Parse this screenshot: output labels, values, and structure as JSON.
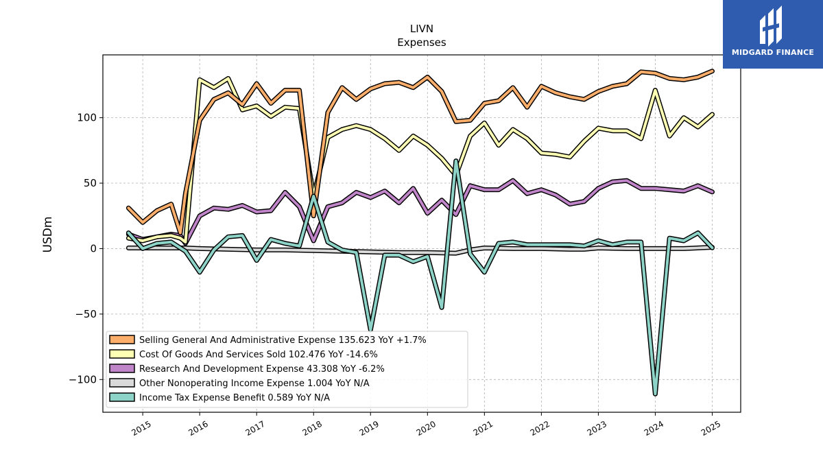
{
  "logo": {
    "text": "MIDGARD FINANCE",
    "icon": "midgard-finance-logo-icon",
    "color": "#2f5cae"
  },
  "chart_data": {
    "type": "line",
    "title": "LIVN",
    "subtitle": "Expenses",
    "ylabel": "USDm",
    "xlabel": "",
    "ylim": [
      -125,
      148
    ],
    "xlim": [
      2014.3,
      2025.5
    ],
    "yticks": [
      -100,
      -50,
      0,
      50,
      100
    ],
    "ytick_labels": [
      "−100",
      "−50",
      "0",
      "50",
      "100"
    ],
    "xticks": [
      2015,
      2016,
      2017,
      2018,
      2019,
      2020,
      2021,
      2022,
      2023,
      2024,
      2025
    ],
    "xtick_labels": [
      "2015",
      "2016",
      "2017",
      "2018",
      "2019",
      "2020",
      "2021",
      "2022",
      "2023",
      "2024",
      "2025"
    ],
    "grid": true,
    "legend_position": "bottom-left",
    "series": [
      {
        "name": "Selling General And Administrative Expense",
        "legend": "Selling General And Administrative Expense  135.623 YoY +1.7%",
        "color": "#fdae6b",
        "points": [
          [
            2014.75,
            31
          ],
          [
            2015.0,
            20
          ],
          [
            2015.25,
            29
          ],
          [
            2015.5,
            34
          ],
          [
            2015.66,
            12
          ],
          [
            2015.75,
            42
          ],
          [
            2016.0,
            98
          ],
          [
            2016.25,
            114
          ],
          [
            2016.5,
            119
          ],
          [
            2016.75,
            110
          ],
          [
            2017.0,
            126
          ],
          [
            2017.25,
            111
          ],
          [
            2017.5,
            121
          ],
          [
            2017.75,
            121
          ],
          [
            2018.0,
            25
          ],
          [
            2018.25,
            104
          ],
          [
            2018.5,
            123
          ],
          [
            2018.75,
            114
          ],
          [
            2019.0,
            122
          ],
          [
            2019.25,
            126
          ],
          [
            2019.5,
            127
          ],
          [
            2019.75,
            123
          ],
          [
            2020.0,
            131
          ],
          [
            2020.25,
            120
          ],
          [
            2020.5,
            97
          ],
          [
            2020.75,
            98
          ],
          [
            2021.0,
            111
          ],
          [
            2021.25,
            113
          ],
          [
            2021.5,
            123
          ],
          [
            2021.75,
            108
          ],
          [
            2022.0,
            124
          ],
          [
            2022.25,
            119
          ],
          [
            2022.5,
            116
          ],
          [
            2022.75,
            114
          ],
          [
            2023.0,
            120
          ],
          [
            2023.25,
            124
          ],
          [
            2023.5,
            126
          ],
          [
            2023.75,
            135
          ],
          [
            2024.0,
            134
          ],
          [
            2024.25,
            130
          ],
          [
            2024.5,
            129
          ],
          [
            2024.75,
            131
          ],
          [
            2025.0,
            135.6
          ]
        ]
      },
      {
        "name": "Cost Of Goods And Services Sold",
        "legend": "Cost Of Goods And Services Sold  102.476 YoY -14.6%",
        "color": "#ffffb3",
        "points": [
          [
            2014.75,
            8
          ],
          [
            2015.0,
            6
          ],
          [
            2015.25,
            9
          ],
          [
            2015.5,
            10
          ],
          [
            2015.66,
            8
          ],
          [
            2015.75,
            5
          ],
          [
            2016.0,
            129
          ],
          [
            2016.25,
            123
          ],
          [
            2016.5,
            130
          ],
          [
            2016.75,
            106
          ],
          [
            2017.0,
            109
          ],
          [
            2017.25,
            101
          ],
          [
            2017.5,
            108
          ],
          [
            2017.75,
            107
          ],
          [
            2018.0,
            40
          ],
          [
            2018.25,
            85
          ],
          [
            2018.5,
            91
          ],
          [
            2018.75,
            94
          ],
          [
            2019.0,
            91
          ],
          [
            2019.25,
            84
          ],
          [
            2019.5,
            75
          ],
          [
            2019.75,
            86
          ],
          [
            2020.0,
            79
          ],
          [
            2020.25,
            69
          ],
          [
            2020.5,
            56
          ],
          [
            2020.75,
            86
          ],
          [
            2021.0,
            96
          ],
          [
            2021.25,
            79
          ],
          [
            2021.5,
            91
          ],
          [
            2021.75,
            84
          ],
          [
            2022.0,
            73
          ],
          [
            2022.25,
            72
          ],
          [
            2022.5,
            70
          ],
          [
            2022.75,
            82
          ],
          [
            2023.0,
            92
          ],
          [
            2023.25,
            90
          ],
          [
            2023.5,
            90
          ],
          [
            2023.75,
            84
          ],
          [
            2024.0,
            121
          ],
          [
            2024.25,
            86
          ],
          [
            2024.5,
            100
          ],
          [
            2024.75,
            93
          ],
          [
            2025.0,
            102.5
          ]
        ]
      },
      {
        "name": "Research And Development Expense",
        "legend": "Research And Development Expense  43.308 YoY -6.2%",
        "color": "#c084c8",
        "points": [
          [
            2014.75,
            11
          ],
          [
            2015.0,
            7
          ],
          [
            2015.25,
            9
          ],
          [
            2015.5,
            11
          ],
          [
            2015.66,
            10
          ],
          [
            2015.75,
            4
          ],
          [
            2016.0,
            25
          ],
          [
            2016.25,
            31
          ],
          [
            2016.5,
            30
          ],
          [
            2016.75,
            33
          ],
          [
            2017.0,
            28
          ],
          [
            2017.25,
            29
          ],
          [
            2017.5,
            43
          ],
          [
            2017.75,
            32
          ],
          [
            2018.0,
            6
          ],
          [
            2018.25,
            32
          ],
          [
            2018.5,
            35
          ],
          [
            2018.75,
            43
          ],
          [
            2019.0,
            39
          ],
          [
            2019.25,
            44
          ],
          [
            2019.5,
            35
          ],
          [
            2019.75,
            46
          ],
          [
            2020.0,
            27
          ],
          [
            2020.25,
            37
          ],
          [
            2020.5,
            26
          ],
          [
            2020.75,
            48
          ],
          [
            2021.0,
            45
          ],
          [
            2021.25,
            45
          ],
          [
            2021.5,
            52
          ],
          [
            2021.75,
            42
          ],
          [
            2022.0,
            45
          ],
          [
            2022.25,
            41
          ],
          [
            2022.5,
            34
          ],
          [
            2022.75,
            36
          ],
          [
            2023.0,
            46
          ],
          [
            2023.25,
            51
          ],
          [
            2023.5,
            52
          ],
          [
            2023.75,
            46
          ],
          [
            2024.0,
            46
          ],
          [
            2024.25,
            45
          ],
          [
            2024.5,
            44
          ],
          [
            2024.75,
            48
          ],
          [
            2025.0,
            43.3
          ]
        ]
      },
      {
        "name": "Other Nonoperating Income Expense",
        "legend": "Other Nonoperating Income Expense  1.004 YoY N/A",
        "color": "#d9d9d9",
        "points": [
          [
            2014.75,
            0.5
          ],
          [
            2015.0,
            0.5
          ],
          [
            2015.25,
            0.5
          ],
          [
            2015.5,
            0.5
          ],
          [
            2015.75,
            0.5
          ],
          [
            2016.0,
            0
          ],
          [
            2016.5,
            -0.5
          ],
          [
            2017.0,
            -1
          ],
          [
            2017.5,
            -1
          ],
          [
            2018.0,
            -1.5
          ],
          [
            2018.5,
            -2
          ],
          [
            2019.0,
            -2.5
          ],
          [
            2019.5,
            -3
          ],
          [
            2020.0,
            -3
          ],
          [
            2020.5,
            -3.5
          ],
          [
            2020.75,
            -1
          ],
          [
            2021.0,
            0.5
          ],
          [
            2021.5,
            0
          ],
          [
            2022.0,
            0
          ],
          [
            2022.5,
            -0.5
          ],
          [
            2022.75,
            -0.5
          ],
          [
            2023.0,
            0.5
          ],
          [
            2023.5,
            0
          ],
          [
            2024.0,
            0
          ],
          [
            2024.5,
            0
          ],
          [
            2025.0,
            1.0
          ]
        ]
      },
      {
        "name": "Income Tax Expense Benefit",
        "legend": "Income Tax Expense Benefit  0.589 YoY N/A",
        "color": "#8dd3c7",
        "points": [
          [
            2014.75,
            12
          ],
          [
            2015.0,
            0
          ],
          [
            2015.25,
            4
          ],
          [
            2015.5,
            5
          ],
          [
            2015.75,
            -2
          ],
          [
            2016.0,
            -18
          ],
          [
            2016.25,
            -1
          ],
          [
            2016.5,
            9
          ],
          [
            2016.75,
            10
          ],
          [
            2017.0,
            -9
          ],
          [
            2017.25,
            7
          ],
          [
            2017.5,
            4
          ],
          [
            2017.75,
            2
          ],
          [
            2018.0,
            40
          ],
          [
            2018.25,
            5
          ],
          [
            2018.5,
            -1
          ],
          [
            2018.75,
            -3
          ],
          [
            2019.0,
            -62
          ],
          [
            2019.25,
            -5
          ],
          [
            2019.5,
            -5
          ],
          [
            2019.75,
            -10
          ],
          [
            2020.0,
            -6
          ],
          [
            2020.25,
            -45
          ],
          [
            2020.5,
            67
          ],
          [
            2020.75,
            -4
          ],
          [
            2021.0,
            -18
          ],
          [
            2021.25,
            4
          ],
          [
            2021.5,
            5
          ],
          [
            2021.75,
            3
          ],
          [
            2022.0,
            3
          ],
          [
            2022.25,
            3
          ],
          [
            2022.5,
            3
          ],
          [
            2022.75,
            2
          ],
          [
            2023.0,
            6
          ],
          [
            2023.25,
            3
          ],
          [
            2023.5,
            5
          ],
          [
            2023.75,
            5
          ],
          [
            2024.0,
            -111
          ],
          [
            2024.25,
            8
          ],
          [
            2024.5,
            6
          ],
          [
            2024.75,
            12
          ],
          [
            2025.0,
            0.6
          ]
        ]
      }
    ]
  }
}
